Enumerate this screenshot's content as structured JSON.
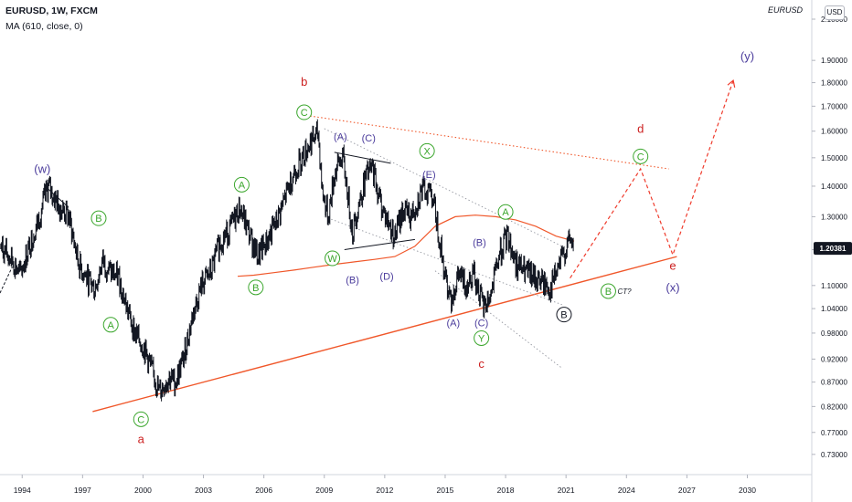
{
  "header": {
    "symbol_line": "EURUSD, 1W, FXCM",
    "indicator_line": "MA (610, close, 0)",
    "right_symbol": "EURUSD",
    "unit_badge": "USD"
  },
  "colors": {
    "price": "#131722",
    "ma": "#f0572a",
    "trend": "#f0572a",
    "channel": "#9598a1",
    "green": "#3aa62c",
    "purple": "#4b3c9c",
    "red": "#cc1f1f",
    "last_price_bg": "#131722"
  },
  "chart_data": {
    "type": "line",
    "x_unit": "year",
    "y_scale": "log",
    "xlim": [
      1992.9,
      2033.2
    ],
    "ylim": [
      0.695,
      2.2
    ],
    "x_ticks": [
      1994,
      1997,
      2000,
      2003,
      2006,
      2009,
      2012,
      2015,
      2018,
      2021,
      2024,
      2027,
      2030
    ],
    "y_ticks": [
      "2.10000",
      "1.90000",
      "1.80000",
      "1.70000",
      "1.60000",
      "1.50000",
      "1.40000",
      "1.30000",
      "1.20000",
      "1.10000",
      "1.04000",
      "0.98000",
      "0.92000",
      "0.87000",
      "0.82000",
      "0.77000",
      "0.73000"
    ],
    "y_tick_values": [
      2.1,
      1.9,
      1.8,
      1.7,
      1.6,
      1.5,
      1.4,
      1.3,
      1.2,
      1.1,
      1.04,
      0.98,
      0.92,
      0.87,
      0.82,
      0.77,
      0.73
    ],
    "last_price": "1.20381",
    "last_price_value": 1.2038,
    "price_series": {
      "x": [
        1992.9,
        1993.5,
        1993.9,
        1994.3,
        1994.8,
        1995.3,
        1995.6,
        1995.9,
        1996.3,
        1996.8,
        1997.2,
        1997.6,
        1998.0,
        1998.3,
        1998.8,
        1999.2,
        1999.6,
        2000.0,
        2000.4,
        2000.8,
        2001.3,
        2001.6,
        2002.0,
        2002.5,
        2002.9,
        2003.4,
        2003.8,
        2004.3,
        2004.8,
        2005.3,
        2005.7,
        2006.1,
        2006.6,
        2007.0,
        2007.5,
        2007.9,
        2008.3,
        2008.7,
        2008.9,
        2009.2,
        2009.5,
        2009.9,
        2010.4,
        2010.7,
        2011.1,
        2011.4,
        2011.8,
        2012.1,
        2012.5,
        2012.9,
        2013.3,
        2013.8,
        2014.3,
        2014.6,
        2015.0,
        2015.3,
        2015.7,
        2016.0,
        2016.4,
        2016.9,
        2017.3,
        2017.7,
        2018.1,
        2018.5,
        2018.9,
        2019.4,
        2019.8,
        2020.2,
        2020.5,
        2020.9,
        2021.2,
        2021.4
      ],
      "y": [
        1.21,
        1.17,
        1.13,
        1.2,
        1.29,
        1.4,
        1.36,
        1.33,
        1.3,
        1.16,
        1.12,
        1.09,
        1.17,
        1.14,
        1.12,
        1.04,
        0.98,
        0.95,
        0.9,
        0.85,
        0.88,
        0.87,
        0.92,
        1.03,
        1.1,
        1.14,
        1.22,
        1.26,
        1.33,
        1.24,
        1.18,
        1.22,
        1.28,
        1.35,
        1.45,
        1.5,
        1.56,
        1.59,
        1.38,
        1.3,
        1.44,
        1.51,
        1.25,
        1.34,
        1.44,
        1.46,
        1.34,
        1.29,
        1.24,
        1.32,
        1.3,
        1.38,
        1.39,
        1.28,
        1.12,
        1.07,
        1.13,
        1.1,
        1.14,
        1.04,
        1.08,
        1.19,
        1.24,
        1.16,
        1.14,
        1.12,
        1.11,
        1.09,
        1.13,
        1.19,
        1.23,
        1.2
      ]
    },
    "ma610": {
      "x": [
        2004.7,
        2005.5,
        2006.5,
        2007.5,
        2008.5,
        2009.5,
        2010.5,
        2011.5,
        2012.5,
        2013.5,
        2014.5,
        2015.5,
        2016.5,
        2017.5,
        2018.5,
        2019.5,
        2020.5,
        2021.4
      ],
      "y": [
        1.125,
        1.128,
        1.135,
        1.142,
        1.15,
        1.158,
        1.165,
        1.172,
        1.18,
        1.21,
        1.27,
        1.3,
        1.305,
        1.3,
        1.29,
        1.27,
        1.24,
        1.225
      ]
    },
    "projection": {
      "x": [
        2021.2,
        2024.7,
        2026.3,
        2029.3
      ],
      "y": [
        1.12,
        1.46,
        1.185,
        1.81
      ]
    },
    "lines": [
      {
        "name": "lower-trendline",
        "x": [
          1997.5,
          2026.5
        ],
        "y": [
          0.81,
          1.18
        ],
        "style": "solid"
      },
      {
        "name": "upper-trendline",
        "x": [
          2008.3,
          2026.1
        ],
        "y": [
          1.66,
          1.46
        ],
        "style": "dotted"
      },
      {
        "name": "channel-1",
        "x": [
          2009.0,
          2020.8
        ],
        "y": [
          1.61,
          1.21
        ],
        "style": "dotted-gray"
      },
      {
        "name": "channel-2",
        "x": [
          2009.0,
          2020.8
        ],
        "y": [
          1.3,
          1.05
        ],
        "style": "dotted-gray"
      },
      {
        "name": "channel-3",
        "x": [
          2014.5,
          2020.8
        ],
        "y": [
          1.14,
          0.9
        ],
        "style": "dotted-gray"
      },
      {
        "name": "wedge-top-1",
        "x": [
          2009.5,
          2012.3
        ],
        "y": [
          1.52,
          1.48
        ],
        "style": "solid-dark"
      },
      {
        "name": "wedge-bot-1",
        "x": [
          2010.0,
          2013.5
        ],
        "y": [
          1.2,
          1.23
        ],
        "style": "solid-dark"
      },
      {
        "name": "w-wedge",
        "x": [
          1995.3,
          1996.3
        ],
        "y": [
          1.39,
          1.33
        ],
        "style": "solid-dark"
      }
    ],
    "annotations": [
      {
        "text": "(w)",
        "x": 1995.0,
        "y": 1.46,
        "color": "purple",
        "circle": false,
        "size": 13
      },
      {
        "text": "B",
        "x": 1997.8,
        "y": 1.295,
        "color": "green",
        "circle": true
      },
      {
        "text": "A",
        "x": 1998.4,
        "y": 1.0,
        "color": "green",
        "circle": true
      },
      {
        "text": "C",
        "x": 1999.9,
        "y": 0.795,
        "color": "green",
        "circle": true
      },
      {
        "text": "a",
        "x": 1999.9,
        "y": 0.758,
        "color": "red",
        "circle": false,
        "size": 13
      },
      {
        "text": "A",
        "x": 2004.9,
        "y": 1.405,
        "color": "green",
        "circle": true
      },
      {
        "text": "B",
        "x": 2005.6,
        "y": 1.095,
        "color": "green",
        "circle": true
      },
      {
        "text": "b",
        "x": 2008.0,
        "y": 1.805,
        "color": "red",
        "circle": false,
        "size": 13
      },
      {
        "text": "C",
        "x": 2008.0,
        "y": 1.675,
        "color": "green",
        "circle": true
      },
      {
        "text": "(A)",
        "x": 2009.8,
        "y": 1.58,
        "color": "purple",
        "circle": false
      },
      {
        "text": "(C)",
        "x": 2011.2,
        "y": 1.575,
        "color": "purple",
        "circle": false
      },
      {
        "text": "W",
        "x": 2009.4,
        "y": 1.175,
        "color": "green",
        "circle": true
      },
      {
        "text": "(B)",
        "x": 2010.4,
        "y": 1.115,
        "color": "purple",
        "circle": false
      },
      {
        "text": "(D)",
        "x": 2012.1,
        "y": 1.125,
        "color": "purple",
        "circle": false
      },
      {
        "text": "X",
        "x": 2014.1,
        "y": 1.525,
        "color": "green",
        "circle": true
      },
      {
        "text": "(E)",
        "x": 2014.2,
        "y": 1.44,
        "color": "purple",
        "circle": false
      },
      {
        "text": "(B)",
        "x": 2016.7,
        "y": 1.222,
        "color": "purple",
        "circle": false
      },
      {
        "text": "(A)",
        "x": 2015.4,
        "y": 1.005,
        "color": "purple",
        "circle": false
      },
      {
        "text": "(C)",
        "x": 2016.8,
        "y": 1.005,
        "color": "purple",
        "circle": false
      },
      {
        "text": "Y",
        "x": 2016.8,
        "y": 0.968,
        "color": "green",
        "circle": true
      },
      {
        "text": "c",
        "x": 2016.8,
        "y": 0.91,
        "color": "red",
        "circle": false,
        "size": 13
      },
      {
        "text": "A",
        "x": 2018.0,
        "y": 1.315,
        "color": "green",
        "circle": true
      },
      {
        "text": "B",
        "x": 2020.9,
        "y": 1.025,
        "color": "black",
        "circle": true
      },
      {
        "text": "B",
        "x": 2023.1,
        "y": 1.085,
        "color": "green",
        "circle": true
      },
      {
        "text": "CT?",
        "x": 2023.9,
        "y": 1.085,
        "color": "black",
        "circle": false,
        "size": 8,
        "italic": true
      },
      {
        "text": "d",
        "x": 2024.7,
        "y": 1.61,
        "color": "red",
        "circle": false,
        "size": 13
      },
      {
        "text": "C",
        "x": 2024.7,
        "y": 1.505,
        "color": "green",
        "circle": true
      },
      {
        "text": "e",
        "x": 2026.3,
        "y": 1.155,
        "color": "red",
        "circle": false,
        "size": 13
      },
      {
        "text": "(x)",
        "x": 2026.3,
        "y": 1.095,
        "color": "purple",
        "circle": false,
        "size": 13
      },
      {
        "text": "(y)",
        "x": 2030.0,
        "y": 1.92,
        "color": "purple",
        "circle": false,
        "size": 13
      }
    ]
  }
}
